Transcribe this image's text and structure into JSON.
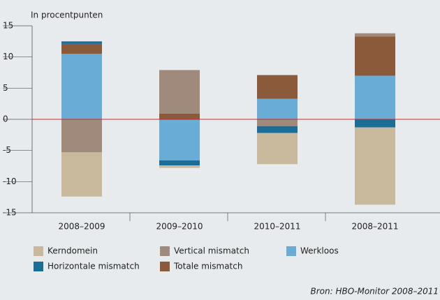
{
  "chart_data": {
    "type": "stacked_bar",
    "title": "In procentpunten",
    "categories": [
      "2008–2009",
      "2009–2010",
      "2010–2011",
      "2008–2011"
    ],
    "series": [
      {
        "name": "Kerndomein",
        "color": "#c9b99c",
        "values": [
          -7.1,
          -0.4,
          -5.0,
          -12.4
        ]
      },
      {
        "name": "Vertical mismatch",
        "color": "#9f8a7b",
        "values": [
          -5.3,
          7.0,
          -1.1,
          0.5
        ]
      },
      {
        "name": "Werkloos",
        "color": "#69add6",
        "values": [
          10.5,
          -6.6,
          3.3,
          7.0
        ]
      },
      {
        "name": "Horizontale mismatch",
        "color": "#1b6d98",
        "values": [
          0.4,
          -0.8,
          -1.1,
          -1.3
        ]
      },
      {
        "name": "Totale mismatch",
        "color": "#8a5a3b",
        "values": [
          1.6,
          0.9,
          3.8,
          6.3
        ]
      }
    ],
    "ylim": [
      -15,
      15
    ],
    "yticks": [
      -15,
      -10,
      -5,
      0,
      5,
      10,
      15
    ],
    "grid": false,
    "source": "Bron: HBO-Monitor 2008–2011"
  }
}
